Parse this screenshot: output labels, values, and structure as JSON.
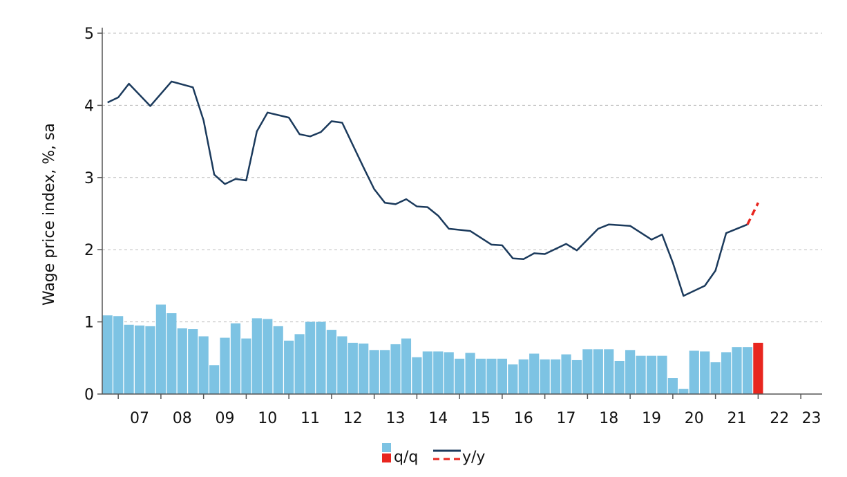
{
  "chart_data": {
    "type": "bar+line",
    "ylabel": "Wage price index, %, sa",
    "ylim": [
      0,
      5
    ],
    "yticks": [
      "0",
      "1",
      "2",
      "3",
      "4",
      "5"
    ],
    "x_range": [
      2006.625,
      2023.5
    ],
    "xticks": [
      {
        "label": "07",
        "value": 2007.5
      },
      {
        "label": "08",
        "value": 2008.5
      },
      {
        "label": "09",
        "value": 2009.5
      },
      {
        "label": "10",
        "value": 2010.5
      },
      {
        "label": "11",
        "value": 2011.5
      },
      {
        "label": "12",
        "value": 2012.5
      },
      {
        "label": "13",
        "value": 2013.5
      },
      {
        "label": "14",
        "value": 2014.5
      },
      {
        "label": "15",
        "value": 2015.5
      },
      {
        "label": "16",
        "value": 2016.5
      },
      {
        "label": "17",
        "value": 2017.5
      },
      {
        "label": "18",
        "value": 2018.5
      },
      {
        "label": "19",
        "value": 2019.5
      },
      {
        "label": "20",
        "value": 2020.5
      },
      {
        "label": "21",
        "value": 2021.5
      },
      {
        "label": "22",
        "value": 2022.5
      },
      {
        "label": "23",
        "value": 2023.25
      }
    ],
    "grid": true,
    "legend_position": "bottom",
    "colors": {
      "qq_bar": "#7dc3e3",
      "qq_bar_forecast": "#e8261f",
      "yy_line": "#1b3a5c",
      "yy_forecast": "#e8261f",
      "grid": "#bbbbbb"
    },
    "series": [
      {
        "name": "q/q",
        "kind": "bar",
        "x": [
          2006.75,
          2007.0,
          2007.25,
          2007.5,
          2007.75,
          2008.0,
          2008.25,
          2008.5,
          2008.75,
          2009.0,
          2009.25,
          2009.5,
          2009.75,
          2010.0,
          2010.25,
          2010.5,
          2010.75,
          2011.0,
          2011.25,
          2011.5,
          2011.75,
          2012.0,
          2012.25,
          2012.5,
          2012.75,
          2013.0,
          2013.25,
          2013.5,
          2013.75,
          2014.0,
          2014.25,
          2014.5,
          2014.75,
          2015.0,
          2015.25,
          2015.5,
          2015.75,
          2016.0,
          2016.25,
          2016.5,
          2016.75,
          2017.0,
          2017.25,
          2017.5,
          2017.75,
          2018.0,
          2018.25,
          2018.5,
          2018.75,
          2019.0,
          2019.25,
          2019.5,
          2019.75,
          2020.0,
          2020.25,
          2020.5,
          2020.75,
          2021.0,
          2021.25,
          2021.5,
          2021.75
        ],
        "values": [
          1.09,
          1.08,
          0.96,
          0.95,
          0.94,
          1.24,
          1.12,
          0.91,
          0.9,
          0.8,
          0.4,
          0.78,
          0.98,
          0.77,
          1.05,
          1.04,
          0.94,
          0.74,
          0.83,
          1.0,
          1.0,
          0.89,
          0.8,
          0.71,
          0.7,
          0.61,
          0.61,
          0.69,
          0.77,
          0.51,
          0.59,
          0.59,
          0.58,
          0.49,
          0.57,
          0.49,
          0.49,
          0.49,
          0.41,
          0.48,
          0.56,
          0.48,
          0.48,
          0.55,
          0.47,
          0.62,
          0.62,
          0.62,
          0.46,
          0.61,
          0.53,
          0.53,
          0.53,
          0.22,
          0.07,
          0.6,
          0.59,
          0.44,
          0.58,
          0.65,
          0.65
        ]
      },
      {
        "name": "q/q forecast",
        "kind": "bar",
        "x": [
          2022.0
        ],
        "values": [
          0.71
        ]
      },
      {
        "name": "y/y",
        "kind": "line",
        "x": [
          2006.75,
          2007.0,
          2007.25,
          2007.75,
          2008.25,
          2008.75,
          2009.0,
          2009.25,
          2009.5,
          2009.75,
          2010.0,
          2010.25,
          2010.5,
          2011.0,
          2011.25,
          2011.5,
          2011.75,
          2012.0,
          2012.25,
          2012.75,
          2013.0,
          2013.25,
          2013.5,
          2013.75,
          2014.0,
          2014.25,
          2014.5,
          2014.75,
          2015.25,
          2015.75,
          2016.0,
          2016.25,
          2016.5,
          2016.75,
          2017.0,
          2017.5,
          2017.75,
          2018.25,
          2018.5,
          2019.0,
          2019.5,
          2019.75,
          2020.0,
          2020.25,
          2020.75,
          2021.0,
          2021.25,
          2021.75
        ],
        "values": [
          4.04,
          4.11,
          4.3,
          3.99,
          4.33,
          4.25,
          3.79,
          3.04,
          2.91,
          2.98,
          2.96,
          3.64,
          3.9,
          3.83,
          3.6,
          3.57,
          3.63,
          3.78,
          3.76,
          3.14,
          2.84,
          2.65,
          2.63,
          2.7,
          2.6,
          2.59,
          2.47,
          2.29,
          2.26,
          2.07,
          2.06,
          1.88,
          1.87,
          1.95,
          1.94,
          2.08,
          1.99,
          2.29,
          2.35,
          2.33,
          2.14,
          2.21,
          1.82,
          1.36,
          1.5,
          1.71,
          2.23,
          2.35
        ]
      },
      {
        "name": "y/y forecast",
        "kind": "line-dashed",
        "x": [
          2021.75,
          2022.0
        ],
        "values": [
          2.35,
          2.65
        ]
      }
    ],
    "legend": [
      {
        "label": "q/q",
        "symbol": "bars"
      },
      {
        "label": "y/y",
        "symbol": "lines"
      }
    ]
  }
}
